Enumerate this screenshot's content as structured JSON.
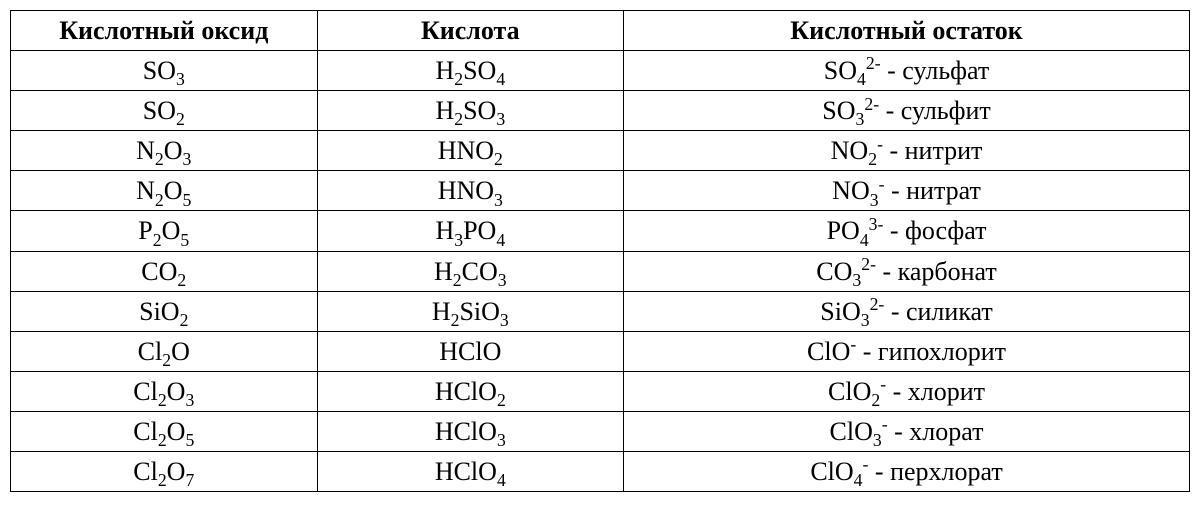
{
  "table": {
    "columns": [
      "Кислотный оксид",
      "Кислота",
      "Кислотный остаток"
    ],
    "background_color": "#ffffff",
    "border_color": "#000000",
    "font_family": "Times New Roman",
    "header_fontsize": 26,
    "cell_fontsize": 26,
    "col_widths_pct": [
      26,
      26,
      48
    ],
    "rows": [
      {
        "oxide": {
          "parts": [
            {
              "t": "SO"
            },
            {
              "t": "3",
              "k": "sub"
            }
          ]
        },
        "acid": {
          "parts": [
            {
              "t": "H"
            },
            {
              "t": "2",
              "k": "sub"
            },
            {
              "t": "SO"
            },
            {
              "t": "4",
              "k": "sub"
            }
          ]
        },
        "residue": {
          "parts": [
            {
              "t": "SO"
            },
            {
              "t": "4",
              "k": "sub"
            },
            {
              "t": "2-",
              "k": "sup"
            },
            {
              "t": " - сульфат"
            }
          ]
        }
      },
      {
        "oxide": {
          "parts": [
            {
              "t": "SO"
            },
            {
              "t": "2",
              "k": "sub"
            }
          ]
        },
        "acid": {
          "parts": [
            {
              "t": "H"
            },
            {
              "t": "2",
              "k": "sub"
            },
            {
              "t": "SO"
            },
            {
              "t": "3",
              "k": "sub"
            }
          ]
        },
        "residue": {
          "parts": [
            {
              "t": "SO"
            },
            {
              "t": "3",
              "k": "sub"
            },
            {
              "t": "2-",
              "k": "sup"
            },
            {
              "t": " - сульфит"
            }
          ]
        }
      },
      {
        "oxide": {
          "parts": [
            {
              "t": "N"
            },
            {
              "t": "2",
              "k": "sub"
            },
            {
              "t": "O"
            },
            {
              "t": "3",
              "k": "sub"
            }
          ]
        },
        "acid": {
          "parts": [
            {
              "t": "HNO"
            },
            {
              "t": "2",
              "k": "sub"
            }
          ]
        },
        "residue": {
          "parts": [
            {
              "t": "NO"
            },
            {
              "t": "2",
              "k": "sub"
            },
            {
              "t": "-",
              "k": "sup"
            },
            {
              "t": " - нитрит"
            }
          ]
        }
      },
      {
        "oxide": {
          "parts": [
            {
              "t": "N"
            },
            {
              "t": "2",
              "k": "sub"
            },
            {
              "t": "O"
            },
            {
              "t": "5",
              "k": "sub"
            }
          ]
        },
        "acid": {
          "parts": [
            {
              "t": "HNO"
            },
            {
              "t": "3",
              "k": "sub"
            }
          ]
        },
        "residue": {
          "parts": [
            {
              "t": "NO"
            },
            {
              "t": "3",
              "k": "sub"
            },
            {
              "t": "-",
              "k": "sup"
            },
            {
              "t": " - нитрат"
            }
          ]
        }
      },
      {
        "oxide": {
          "parts": [
            {
              "t": "P"
            },
            {
              "t": "2",
              "k": "sub"
            },
            {
              "t": "O"
            },
            {
              "t": "5",
              "k": "sub"
            }
          ]
        },
        "acid": {
          "parts": [
            {
              "t": "H"
            },
            {
              "t": "3",
              "k": "sub"
            },
            {
              "t": "PO"
            },
            {
              "t": "4",
              "k": "sub"
            }
          ]
        },
        "residue": {
          "parts": [
            {
              "t": "PO"
            },
            {
              "t": "4",
              "k": "sub"
            },
            {
              "t": "3-",
              "k": "sup"
            },
            {
              "t": " - фосфат"
            }
          ]
        }
      },
      {
        "oxide": {
          "parts": [
            {
              "t": "CO"
            },
            {
              "t": "2",
              "k": "sub"
            }
          ]
        },
        "acid": {
          "parts": [
            {
              "t": "H"
            },
            {
              "t": "2",
              "k": "sub"
            },
            {
              "t": "CO"
            },
            {
              "t": "3",
              "k": "sub"
            }
          ]
        },
        "residue": {
          "parts": [
            {
              "t": "CO"
            },
            {
              "t": "3",
              "k": "sub"
            },
            {
              "t": "2-",
              "k": "sup"
            },
            {
              "t": " - карбонат"
            }
          ]
        }
      },
      {
        "oxide": {
          "parts": [
            {
              "t": "SiO"
            },
            {
              "t": "2",
              "k": "sub"
            }
          ]
        },
        "acid": {
          "parts": [
            {
              "t": "H"
            },
            {
              "t": "2",
              "k": "sub"
            },
            {
              "t": "SiO"
            },
            {
              "t": "3",
              "k": "sub"
            }
          ]
        },
        "residue": {
          "parts": [
            {
              "t": "SiO"
            },
            {
              "t": "3",
              "k": "sub"
            },
            {
              "t": "2-",
              "k": "sup"
            },
            {
              "t": " - силикат"
            }
          ]
        }
      },
      {
        "oxide": {
          "parts": [
            {
              "t": "Cl"
            },
            {
              "t": "2",
              "k": "sub"
            },
            {
              "t": "O"
            }
          ]
        },
        "acid": {
          "parts": [
            {
              "t": "HClO"
            }
          ]
        },
        "residue": {
          "parts": [
            {
              "t": "ClO"
            },
            {
              "t": "-",
              "k": "sup"
            },
            {
              "t": " - гипохлорит"
            }
          ]
        }
      },
      {
        "oxide": {
          "parts": [
            {
              "t": "Cl"
            },
            {
              "t": "2",
              "k": "sub"
            },
            {
              "t": "O"
            },
            {
              "t": "3",
              "k": "sub"
            }
          ]
        },
        "acid": {
          "parts": [
            {
              "t": "HClO"
            },
            {
              "t": "2",
              "k": "sub"
            }
          ]
        },
        "residue": {
          "parts": [
            {
              "t": "ClO"
            },
            {
              "t": "2",
              "k": "sub"
            },
            {
              "t": "-",
              "k": "sup"
            },
            {
              "t": " - хлорит"
            }
          ]
        }
      },
      {
        "oxide": {
          "parts": [
            {
              "t": "Cl"
            },
            {
              "t": "2",
              "k": "sub"
            },
            {
              "t": "O"
            },
            {
              "t": "5",
              "k": "sub"
            }
          ]
        },
        "acid": {
          "parts": [
            {
              "t": "HClO"
            },
            {
              "t": "3",
              "k": "sub"
            }
          ]
        },
        "residue": {
          "parts": [
            {
              "t": "ClO"
            },
            {
              "t": "3",
              "k": "sub"
            },
            {
              "t": "-",
              "k": "sup"
            },
            {
              "t": " - хлорат"
            }
          ]
        }
      },
      {
        "oxide": {
          "parts": [
            {
              "t": "Cl"
            },
            {
              "t": "2",
              "k": "sub"
            },
            {
              "t": "O"
            },
            {
              "t": "7",
              "k": "sub"
            }
          ]
        },
        "acid": {
          "parts": [
            {
              "t": "HClO"
            },
            {
              "t": "4",
              "k": "sub"
            }
          ]
        },
        "residue": {
          "parts": [
            {
              "t": "ClO"
            },
            {
              "t": "4",
              "k": "sub"
            },
            {
              "t": "-",
              "k": "sup"
            },
            {
              "t": " - перхлорат"
            }
          ]
        }
      }
    ]
  }
}
